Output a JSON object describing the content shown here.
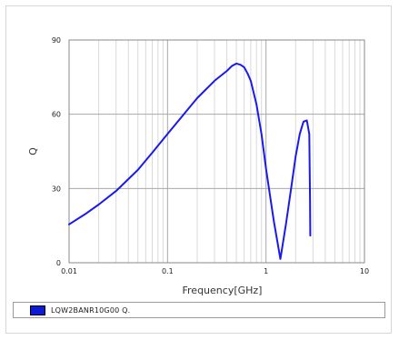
{
  "chart_data": {
    "type": "line",
    "xlabel": "Frequency[GHz]",
    "ylabel": "Q",
    "xscale": "log",
    "xlim": [
      0.01,
      10
    ],
    "ylim": [
      0,
      90
    ],
    "x_ticks": [
      "0.01",
      "0.1",
      "1",
      "10"
    ],
    "y_ticks": [
      "0",
      "30",
      "60",
      "90"
    ],
    "grid": true,
    "legend_position": "bottom",
    "series": [
      {
        "name": "LQW2BANR10G00 Q.",
        "color": "#1a1aee",
        "x": [
          0.01,
          0.015,
          0.02,
          0.03,
          0.05,
          0.07,
          0.1,
          0.15,
          0.2,
          0.3,
          0.4,
          0.45,
          0.5,
          0.55,
          0.6,
          0.65,
          0.7,
          0.8,
          0.9,
          1.0,
          1.2,
          1.4,
          1.6,
          1.8,
          2.0,
          2.2,
          2.4,
          2.6,
          2.75,
          2.8,
          2.82
        ],
        "y": [
          15.5,
          20,
          23.5,
          29,
          37.5,
          44.5,
          52,
          60.5,
          66.5,
          73.5,
          77.5,
          79.5,
          80.5,
          80,
          79,
          76.5,
          73.5,
          64,
          52,
          38,
          17,
          1.5,
          16,
          30,
          43,
          52,
          57,
          57.5,
          52,
          26,
          11
        ]
      }
    ]
  }
}
